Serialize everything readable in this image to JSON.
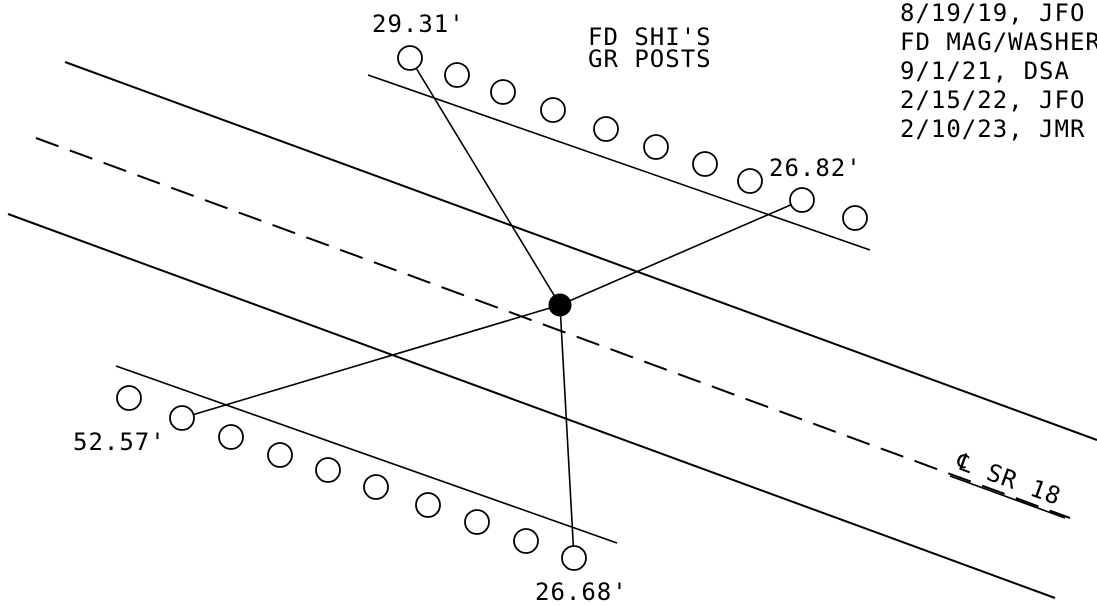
{
  "notes": {
    "found_label_line1": "FD SHI'S",
    "found_label_line2": "GR POSTS",
    "history": [
      "8/19/19, JFO",
      "FD MAG/WASHER",
      "9/1/21, DSA",
      "2/15/22, JFO",
      "2/10/23, JMR"
    ]
  },
  "ties": {
    "top_left": "29.31'",
    "top_right": "26.82'",
    "bottom_left": "52.57'",
    "bottom_right": "26.68'"
  },
  "centerline_label": "℄ SR 18",
  "colors": {
    "ink": "#000000",
    "background": "#ffffff"
  }
}
